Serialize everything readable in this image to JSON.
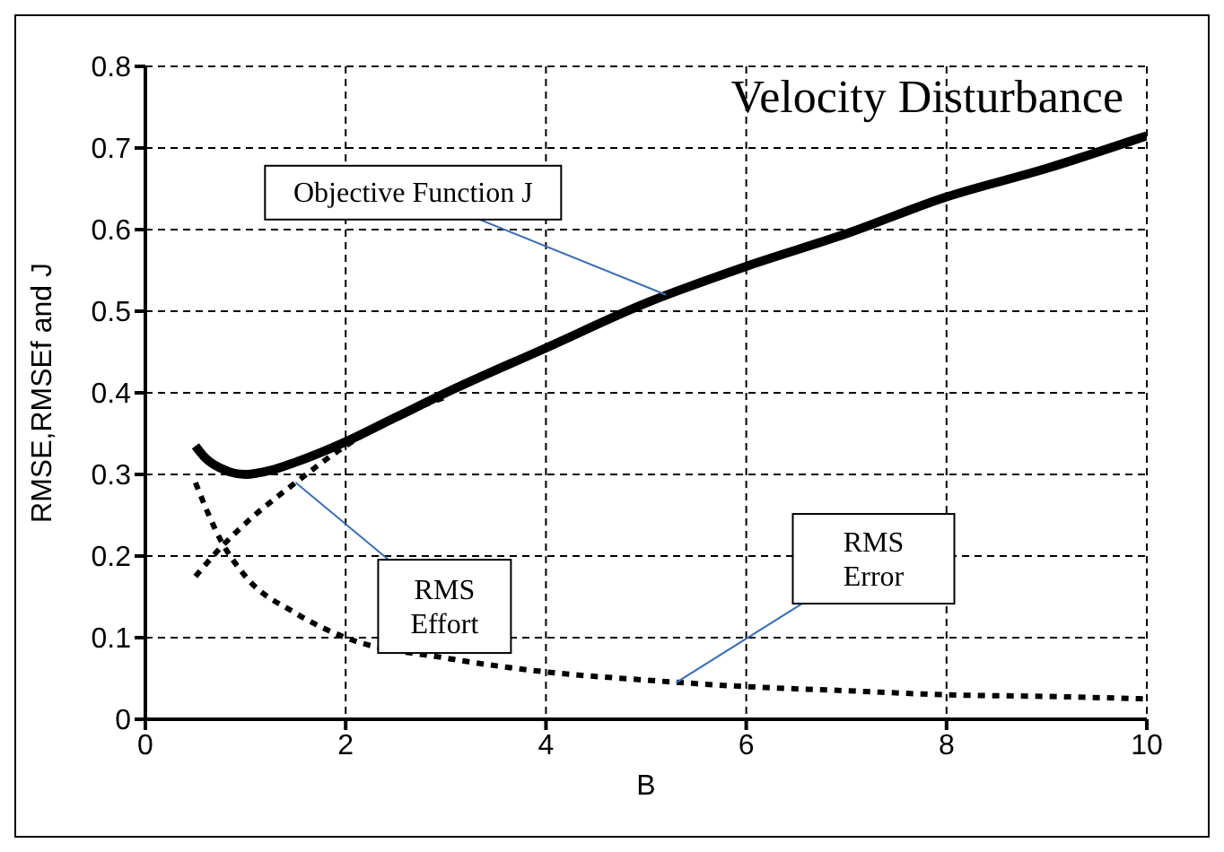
{
  "chart_data": {
    "type": "line",
    "title": "Velocity Disturbance",
    "xlabel": "B",
    "ylabel": "RMSE,RMSEf and J",
    "xlim": [
      0,
      10
    ],
    "xticks": [
      0,
      2,
      4,
      6,
      8,
      10
    ],
    "ylim": [
      0,
      0.8
    ],
    "yticks": [
      0,
      0.1,
      0.2,
      0.3,
      0.4,
      0.5,
      0.6,
      0.7,
      0.8
    ],
    "grid": true,
    "marker": "none",
    "series": [
      {
        "color": "#000000",
        "line_style": "solid",
        "x": [
          0.5,
          0.6,
          0.8,
          1,
          1.25,
          1.5,
          2,
          2.5,
          3,
          4,
          5,
          6,
          7,
          8,
          9,
          10
        ],
        "values": [
          0.335,
          0.32,
          0.305,
          0.3,
          0.305,
          0.315,
          0.34,
          0.37,
          0.4,
          0.455,
          0.51,
          0.555,
          0.595,
          0.64,
          0.675,
          0.715
        ]
      },
      {
        "color": "#000000",
        "line_style": "dotted",
        "x": [
          0.5,
          0.75,
          1,
          1.5,
          2,
          2.5,
          3
        ],
        "values": [
          0.175,
          0.21,
          0.24,
          0.29,
          0.335,
          0.37,
          0.395
        ]
      },
      {
        "color": "#000000",
        "line_style": "dotted",
        "x": [
          0.5,
          0.75,
          1,
          1.5,
          2,
          3,
          4,
          5,
          6,
          7,
          8,
          9,
          10
        ],
        "values": [
          0.29,
          0.22,
          0.175,
          0.13,
          0.1,
          0.075,
          0.058,
          0.048,
          0.04,
          0.035,
          0.03,
          0.028,
          0.025
        ]
      }
    ],
    "annotations": [
      {
        "text": "Objective Function J",
        "x": 5.2,
        "y": 0.52
      },
      {
        "text": "RMS Effort",
        "x": 1.5,
        "y": 0.29
      },
      {
        "text": "RMS Error",
        "x": 5.3,
        "y": 0.045
      }
    ]
  }
}
